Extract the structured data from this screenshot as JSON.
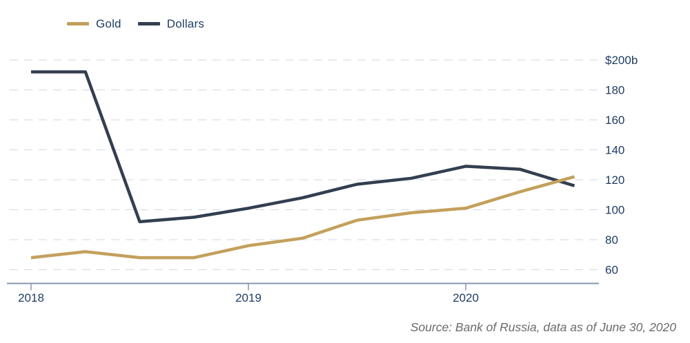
{
  "legend": {
    "items": [
      {
        "label": "Gold",
        "color": "#C3A05C"
      },
      {
        "label": "Dollars",
        "color": "#333F50"
      }
    ]
  },
  "source_note": "Source: Bank of Russia, data as of June 30, 2020",
  "colors": {
    "background": "#FFFFFF",
    "axis_text": "#1F3C64",
    "axis_line": "#8496B0",
    "gridline": "#D9DEE5",
    "gold_line": "#C3A05C",
    "dollars_line": "#333F50",
    "source_text": "#6A6A6A"
  },
  "chart_data": {
    "type": "line",
    "x": [
      "2018-Q1",
      "2018-Q2",
      "2018-Q3",
      "2018-Q4",
      "2019-Q1",
      "2019-Q2",
      "2019-Q3",
      "2019-Q4",
      "2020-Q1",
      "2020-Q2",
      "2020-06-30"
    ],
    "series": [
      {
        "name": "Gold",
        "color": "#C3A05C",
        "values": [
          68,
          72,
          68,
          68,
          76,
          81,
          93,
          98,
          101,
          112,
          122
        ]
      },
      {
        "name": "Dollars",
        "color": "#333F50",
        "values": [
          192,
          192,
          92,
          95,
          101,
          108,
          117,
          121,
          129,
          127,
          116
        ]
      }
    ],
    "x_tick_labels": [
      "2018",
      "2019",
      "2020"
    ],
    "x_tick_data_indices": [
      0,
      4,
      8
    ],
    "y_ticks": [
      60,
      80,
      100,
      120,
      140,
      160,
      180,
      200
    ],
    "y_tick_labels": [
      "60",
      "80",
      "100",
      "120",
      "140",
      "160",
      "180",
      "$200b"
    ],
    "ylim": [
      60,
      200
    ],
    "grid": "horizontal-dashed",
    "legend_position": "top-left"
  }
}
